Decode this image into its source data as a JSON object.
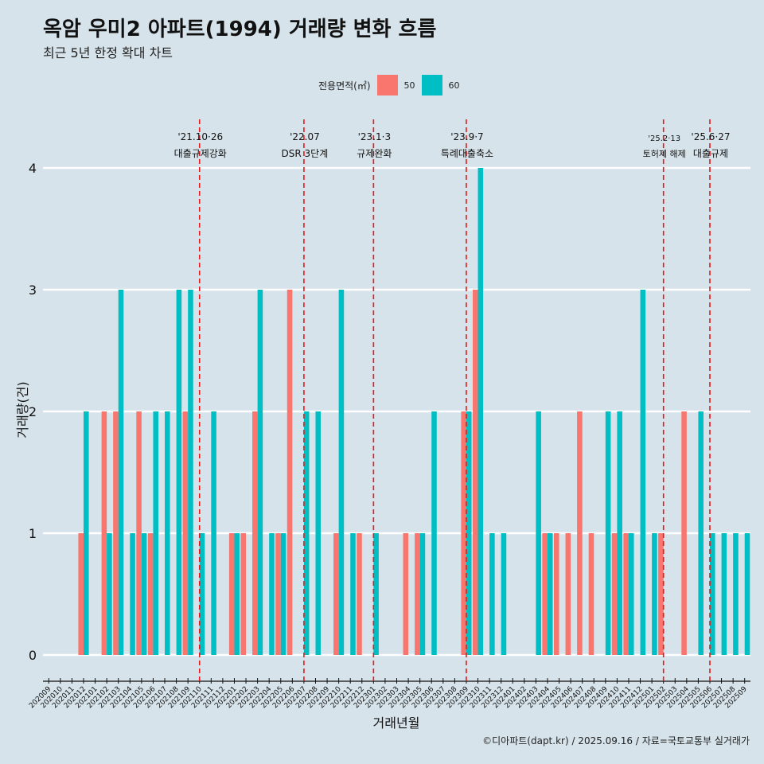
{
  "title": "옥암 우미2 아파트(1994) 거래량 변화 흐름",
  "subtitle": "최근 5년 한정 확대 차트",
  "caption": "©디아파트(dapt.kr) / 2025.09.16 / 자료=국토교통부 실거래가",
  "legend": {
    "title": "전용면적(㎡)",
    "items": [
      {
        "label": "50",
        "color": "#f8766d"
      },
      {
        "label": "60",
        "color": "#00bfc4"
      }
    ]
  },
  "chart_data": {
    "type": "bar",
    "xlabel": "거래년월",
    "ylabel": "거래량(건)",
    "ylim": [
      0,
      4
    ],
    "yticks": [
      "0",
      "1",
      "2",
      "3",
      "4"
    ],
    "grid": "horizontal",
    "legend_position": "top",
    "categories": [
      "202009",
      "202010",
      "202011",
      "202012",
      "202101",
      "202102",
      "202103",
      "202104",
      "202105",
      "202106",
      "202107",
      "202108",
      "202109",
      "202110",
      "202111",
      "202112",
      "202201",
      "202202",
      "202203",
      "202204",
      "202205",
      "202206",
      "202207",
      "202208",
      "202209",
      "202210",
      "202211",
      "202212",
      "202301",
      "202302",
      "202303",
      "202304",
      "202305",
      "202306",
      "202307",
      "202308",
      "202309",
      "202310",
      "202311",
      "202312",
      "202401",
      "202402",
      "202403",
      "202404",
      "202405",
      "202406",
      "202407",
      "202408",
      "202409",
      "202410",
      "202411",
      "202412",
      "202501",
      "202502",
      "202503",
      "202504",
      "202505",
      "202506",
      "202507",
      "202508",
      "202509"
    ],
    "series": [
      {
        "name": "50",
        "color": "#f8766d",
        "values": [
          0,
          0,
          0,
          1,
          0,
          2,
          2,
          0,
          2,
          1,
          0,
          0,
          2,
          0,
          0,
          0,
          1,
          1,
          2,
          0,
          1,
          3,
          0,
          0,
          0,
          1,
          0,
          1,
          0,
          0,
          0,
          1,
          1,
          0,
          0,
          0,
          2,
          3,
          0,
          0,
          0,
          0,
          0,
          1,
          1,
          1,
          2,
          1,
          0,
          1,
          1,
          0,
          0,
          1,
          0,
          2,
          0,
          0,
          0,
          0,
          0
        ]
      },
      {
        "name": "60",
        "color": "#00bfc4",
        "values": [
          0,
          0,
          0,
          2,
          0,
          1,
          3,
          1,
          1,
          2,
          2,
          3,
          3,
          1,
          2,
          0,
          1,
          0,
          3,
          1,
          1,
          0,
          2,
          2,
          0,
          3,
          1,
          0,
          1,
          0,
          0,
          0,
          1,
          2,
          0,
          0,
          2,
          4,
          1,
          1,
          0,
          0,
          2,
          1,
          0,
          0,
          0,
          0,
          2,
          2,
          1,
          3,
          1,
          0,
          0,
          0,
          2,
          1,
          1,
          1,
          1
        ]
      }
    ],
    "annotations": [
      {
        "x": "202110",
        "label": "'21.10·26",
        "sublabel": "대출규제강화",
        "color": "#e41a1c"
      },
      {
        "x": "202207",
        "label": "'22.07",
        "sublabel": "DSR 3단계",
        "color": "#e41a1c"
      },
      {
        "x": "202301",
        "label": "'23.1·3",
        "sublabel": "규제완화",
        "color": "#e41a1c"
      },
      {
        "x": "202309",
        "label": "'23.9·7",
        "sublabel": "특례대출축소",
        "color": "#e41a1c"
      },
      {
        "x": "202502",
        "label": "'25.2·13",
        "sublabel": "토허제 해제",
        "color": "#e41a1c"
      },
      {
        "x": "202506",
        "label": "'25.6·27",
        "sublabel": "대출규제",
        "color": "#e41a1c"
      }
    ]
  }
}
